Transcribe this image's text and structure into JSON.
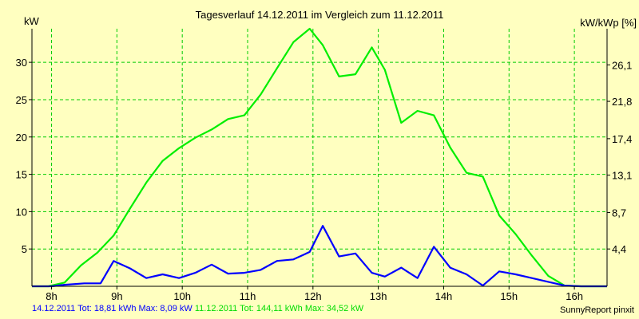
{
  "chart_data": {
    "type": "line",
    "title": "Tagesverlauf 14.12.2011 im Vergleich zum 11.12.2011",
    "ylabel": "kW",
    "ylabel_right": "kW/kWp [%]",
    "xlim": [
      7.7,
      16.5
    ],
    "ylim": [
      0,
      34.5
    ],
    "x_ticks": [
      8,
      9,
      10,
      11,
      12,
      13,
      14,
      15,
      16
    ],
    "x_tick_labels": [
      "8h",
      "9h",
      "10h",
      "11h",
      "12h",
      "13h",
      "14h",
      "15h",
      "16h"
    ],
    "y_ticks": [
      5,
      10,
      15,
      20,
      25,
      30
    ],
    "y_tick_labels": [
      "5",
      "10",
      "15",
      "20",
      "25",
      "30"
    ],
    "y2_ticks": [
      4.4,
      8.7,
      13.1,
      17.4,
      21.8,
      26.1
    ],
    "y2_tick_labels": [
      "4,4",
      "8,7",
      "13,1",
      "17,4",
      "21,8",
      "26,1"
    ],
    "grid": true,
    "series": [
      {
        "name": "14.12.2011",
        "color": "#0000FF",
        "x": [
          7.7,
          8.0,
          8.2,
          8.5,
          8.75,
          8.95,
          9.2,
          9.45,
          9.7,
          9.95,
          10.2,
          10.45,
          10.7,
          10.95,
          11.2,
          11.45,
          11.7,
          11.95,
          12.15,
          12.4,
          12.65,
          12.9,
          13.1,
          13.35,
          13.6,
          13.85,
          14.1,
          14.35,
          14.6,
          14.85,
          15.1,
          15.35,
          15.6,
          15.85,
          16.1,
          16.5
        ],
        "values": [
          0,
          0,
          0.2,
          0.4,
          0.4,
          3.4,
          2.4,
          1.1,
          1.6,
          1.1,
          1.8,
          2.9,
          1.7,
          1.8,
          2.2,
          3.4,
          3.6,
          4.6,
          8.1,
          4.0,
          4.4,
          1.8,
          1.3,
          2.5,
          1.1,
          5.3,
          2.5,
          1.6,
          0.1,
          2.0,
          1.6,
          1.1,
          0.6,
          0.1,
          0,
          0
        ]
      },
      {
        "name": "11.12.2011",
        "color": "#00EE00",
        "x": [
          7.7,
          7.95,
          8.2,
          8.45,
          8.7,
          8.95,
          9.2,
          9.45,
          9.7,
          9.95,
          10.2,
          10.45,
          10.7,
          10.95,
          11.2,
          11.45,
          11.7,
          11.95,
          12.15,
          12.4,
          12.65,
          12.9,
          13.1,
          13.35,
          13.6,
          13.85,
          14.1,
          14.35,
          14.6,
          14.85,
          15.1,
          15.35,
          15.6,
          15.85,
          16.1,
          16.5
        ],
        "values": [
          0,
          0,
          0.5,
          2.8,
          4.5,
          6.8,
          10.4,
          13.9,
          16.8,
          18.5,
          19.9,
          21.0,
          22.4,
          22.9,
          25.7,
          29.2,
          32.7,
          34.5,
          32.3,
          28.1,
          28.4,
          32.0,
          29.0,
          21.9,
          23.5,
          22.9,
          18.6,
          15.2,
          14.7,
          9.5,
          7.0,
          4.1,
          1.4,
          0.1,
          0,
          0
        ]
      }
    ]
  },
  "footer": {
    "series1_text": "14.12.2011 Tot: 18,81 kWh Max: 8,09 kW",
    "series2_text": "11.12.2011 Tot: 144,11 kWh Max: 34,52 kW",
    "credit": "SunnyReport pinxit"
  }
}
